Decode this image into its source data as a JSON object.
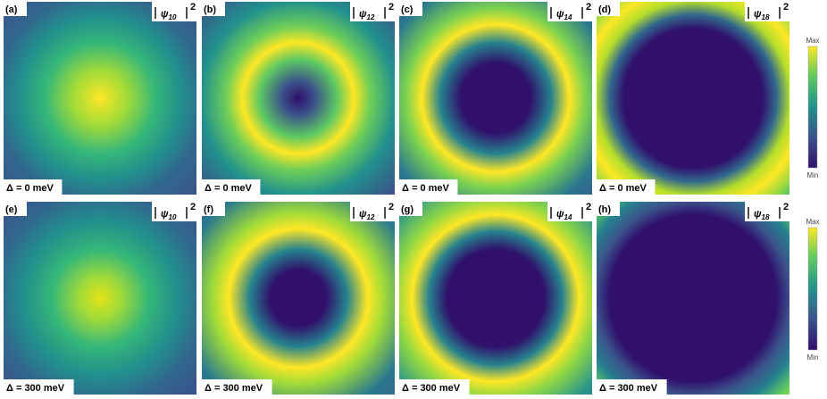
{
  "panels": [
    {
      "label": "(a)",
      "state": {
        "symbol": "ψ",
        "index": "10",
        "power": "2"
      },
      "detuning": "Δ = 0 meV"
    },
    {
      "label": "(b)",
      "state": {
        "symbol": "ψ",
        "index": "12",
        "power": "2"
      },
      "detuning": "Δ = 0 meV"
    },
    {
      "label": "(c)",
      "state": {
        "symbol": "ψ",
        "index": "14",
        "power": "2"
      },
      "detuning": "Δ = 0 meV"
    },
    {
      "label": "(d)",
      "state": {
        "symbol": "ψ",
        "index": "18",
        "power": "2"
      },
      "detuning": "Δ = 0 meV"
    },
    {
      "label": "(e)",
      "state": {
        "symbol": "ψ",
        "index": "10",
        "power": "2"
      },
      "detuning": "Δ = 300 meV"
    },
    {
      "label": "(f)",
      "state": {
        "symbol": "ψ",
        "index": "12",
        "power": "2"
      },
      "detuning": "Δ = 300 meV"
    },
    {
      "label": "(g)",
      "state": {
        "symbol": "ψ",
        "index": "14",
        "power": "2"
      },
      "detuning": "Δ = 300 meV"
    },
    {
      "label": "(h)",
      "state": {
        "symbol": "ψ",
        "index": "18",
        "power": "2"
      },
      "detuning": "Δ = 300 meV"
    }
  ],
  "colorbars": [
    {
      "max": "Max",
      "min": "Min"
    },
    {
      "max": "Max",
      "min": "Min"
    }
  ]
}
